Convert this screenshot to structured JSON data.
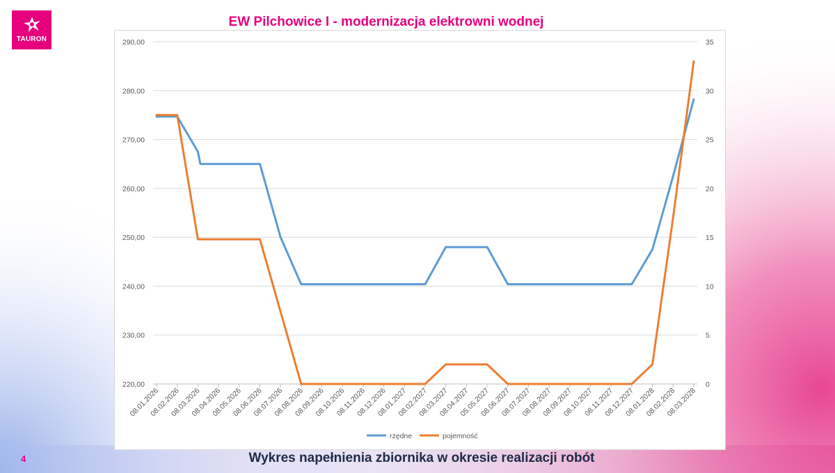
{
  "slide": {
    "brand": "TAURON",
    "page_number": "4",
    "caption": "Wykres napełnienia zbiornika w okresie realizacji robót"
  },
  "colors": {
    "brand": "#e6007e",
    "series_rzedne": "#5b9bd5",
    "series_pojemnosc": "#ed7d31",
    "caption": "#1e2a4a"
  },
  "chart_data": {
    "type": "line",
    "title": "EW Pilchowice I - modernizacja elektrowni wodnej",
    "x_ticks": [
      "08.01.2026",
      "08.02.2026",
      "08.03.2026",
      "08.04.2026",
      "08.05.2026",
      "08.06.2026",
      "08.07.2026",
      "08.08.2026",
      "08.09.2026",
      "08.10.2026",
      "08.11.2026",
      "08.12.2026",
      "08.01.2027",
      "08.02.2027",
      "08.03.2027",
      "08.04.2027",
      "05.05.2027",
      "08.06.2027",
      "08.07.2027",
      "08.08.2027",
      "08.09.2027",
      "08.10.2027",
      "08.11.2027",
      "08.12.2027",
      "08.01.2028",
      "08.02.2028",
      "08.03.2028"
    ],
    "y_left": {
      "min": 220,
      "max": 290,
      "step": 10,
      "tick_labels": [
        "220,00",
        "230,00",
        "240,00",
        "250,00",
        "260,00",
        "270,00",
        "280,00",
        "290,00"
      ]
    },
    "y_right": {
      "min": 0,
      "max": 35,
      "step": 5,
      "tick_labels": [
        "0",
        "5",
        "10",
        "15",
        "20",
        "25",
        "30",
        "35"
      ]
    },
    "series": [
      {
        "name": "rzędne",
        "axis": "left",
        "points": [
          [
            "08.01.2026",
            274.7
          ],
          [
            "08.02.2026",
            274.7
          ],
          [
            "08.03.2026",
            267.5
          ],
          [
            "08.03.2026+",
            265.0
          ],
          [
            "08.06.2026",
            265.0
          ],
          [
            "08.07.2026",
            250.0
          ],
          [
            "08.08.2026",
            240.4
          ],
          [
            "08.02.2027",
            240.4
          ],
          [
            "08.03.2027",
            248.0
          ],
          [
            "05.05.2027",
            248.0
          ],
          [
            "08.06.2027",
            240.4
          ],
          [
            "08.12.2027",
            240.4
          ],
          [
            "08.01.2028",
            247.5
          ],
          [
            "08.02.2028",
            262.5
          ],
          [
            "08.03.2028",
            278.2
          ]
        ]
      },
      {
        "name": "pojemność",
        "axis": "right",
        "points": [
          [
            "08.01.2026",
            27.5
          ],
          [
            "08.02.2026",
            27.5
          ],
          [
            "08.03.2026",
            14.8
          ],
          [
            "08.06.2026",
            14.8
          ],
          [
            "08.08.2026",
            0
          ],
          [
            "08.02.2027",
            0
          ],
          [
            "08.03.2027",
            2
          ],
          [
            "05.05.2027",
            2
          ],
          [
            "08.06.2027",
            0
          ],
          [
            "08.12.2027",
            0
          ],
          [
            "08.01.2028",
            2
          ],
          [
            "08.02.2028",
            17
          ],
          [
            "08.03.2028",
            33
          ]
        ]
      }
    ],
    "legend": [
      "rzędne",
      "pojemność"
    ],
    "legend_position": "bottom",
    "grid": true
  }
}
